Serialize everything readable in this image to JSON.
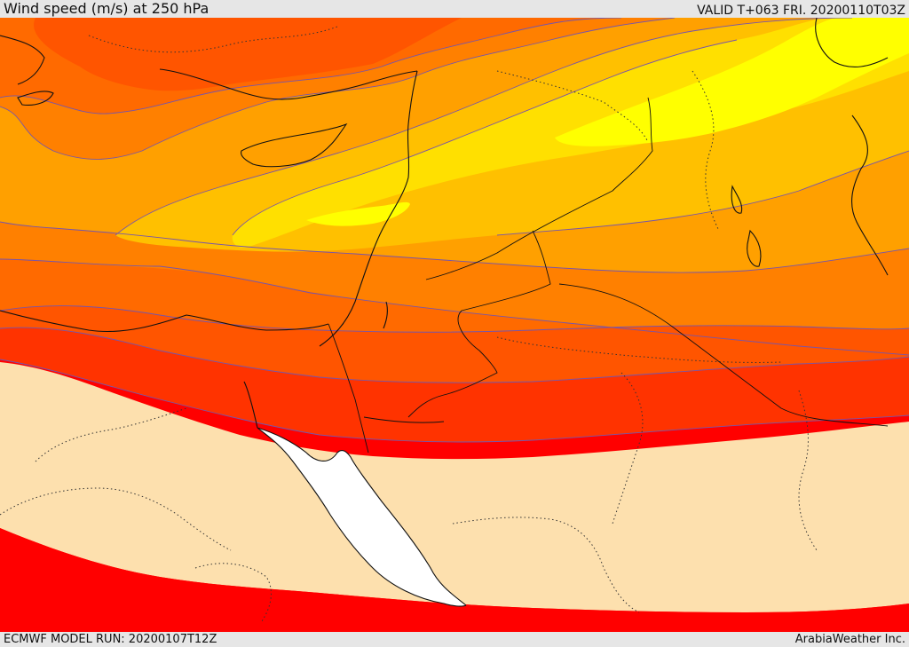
{
  "header": {
    "title": "Wind speed (m/s) at 250 hPa",
    "valid": "VALID T+063 FRI. 20200110T03Z"
  },
  "footer": {
    "model_run": "ECMWF MODEL RUN: 20200107T12Z",
    "credit": "ArabiaWeather Inc."
  },
  "map": {
    "field": "wind speed",
    "level": "250 hPa",
    "colors": {
      "band_pale": "#fde0ae",
      "band_red": "#ff0000",
      "band_redorange": "#ff3300",
      "band_orange_red": "#ff5500",
      "band_dark_orange": "#ff6a00",
      "band_orange": "#ff8000",
      "band_light_orange": "#ffa000",
      "band_amber": "#ffc000",
      "band_gold": "#ffe000",
      "band_yellow": "#ffff00",
      "sea_white": "#ffffff",
      "contour_line": "#7755aa",
      "coastline": "#111111"
    }
  }
}
